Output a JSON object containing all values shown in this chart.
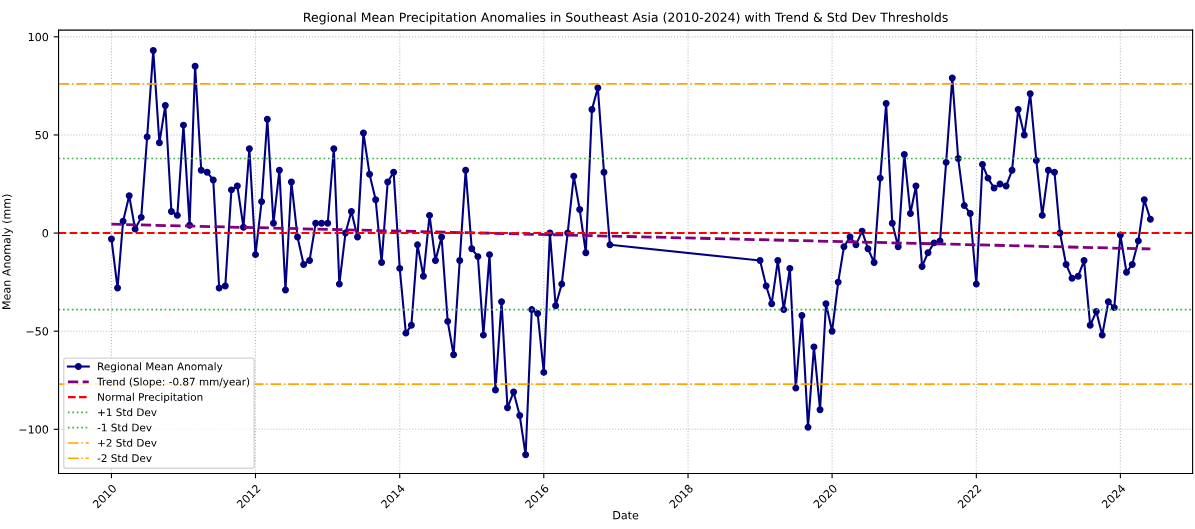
{
  "chart_data": {
    "type": "line",
    "title": "Regional Mean Precipitation Anomalies in Southeast Asia (2010-2024) with Trend & Std Dev Thresholds",
    "xlabel": "Date",
    "ylabel": "Mean Anomaly (mm)",
    "xlim": [
      "2009-04-08",
      "2025-01-01"
    ],
    "ylim": [
      -122.5,
      103.4
    ],
    "xticks": [
      {
        "value": "2010",
        "label": "2010"
      },
      {
        "value": "2012",
        "label": "2012"
      },
      {
        "value": "2014",
        "label": "2014"
      },
      {
        "value": "2016",
        "label": "2016"
      },
      {
        "value": "2018",
        "label": "2018"
      },
      {
        "value": "2020",
        "label": "2020"
      },
      {
        "value": "2022",
        "label": "2022"
      },
      {
        "value": "2024",
        "label": "2024"
      }
    ],
    "yticks": [
      {
        "value": -100,
        "label": "−100"
      },
      {
        "value": -50,
        "label": "−50"
      },
      0,
      50,
      100
    ],
    "grid": true,
    "legend": "bottom left",
    "series": [
      {
        "name": "Regional Mean Anomaly",
        "color": "#000080",
        "marker": "circle",
        "line_style": "solid",
        "x": [
          "2010-01",
          "2010-02",
          "2010-03",
          "2010-04",
          "2010-05",
          "2010-06",
          "2010-07",
          "2010-08",
          "2010-09",
          "2010-10",
          "2010-11",
          "2010-12",
          "2011-01",
          "2011-02",
          "2011-03",
          "2011-04",
          "2011-05",
          "2011-06",
          "2011-07",
          "2011-08",
          "2011-09",
          "2011-10",
          "2011-11",
          "2011-12",
          "2012-01",
          "2012-02",
          "2012-03",
          "2012-04",
          "2012-05",
          "2012-06",
          "2012-07",
          "2012-08",
          "2012-09",
          "2012-10",
          "2012-11",
          "2012-12",
          "2013-01",
          "2013-02",
          "2013-03",
          "2013-04",
          "2013-05",
          "2013-06",
          "2013-07",
          "2013-08",
          "2013-09",
          "2013-10",
          "2013-11",
          "2013-12",
          "2014-01",
          "2014-02",
          "2014-03",
          "2014-04",
          "2014-05",
          "2014-06",
          "2014-07",
          "2014-08",
          "2014-09",
          "2014-10",
          "2014-11",
          "2014-12",
          "2015-01",
          "2015-02",
          "2015-03",
          "2015-04",
          "2015-05",
          "2015-06",
          "2015-07",
          "2015-08",
          "2015-09",
          "2015-10",
          "2015-11",
          "2015-12",
          "2016-01",
          "2016-02",
          "2016-03",
          "2016-04",
          "2016-05",
          "2016-06",
          "2016-07",
          "2016-08",
          "2016-09",
          "2016-10",
          "2016-11",
          "2016-12",
          "2019-01",
          "2019-02",
          "2019-03",
          "2019-04",
          "2019-05",
          "2019-06",
          "2019-07",
          "2019-08",
          "2019-09",
          "2019-10",
          "2019-11",
          "2019-12",
          "2020-01",
          "2020-02",
          "2020-03",
          "2020-04",
          "2020-05",
          "2020-06",
          "2020-07",
          "2020-08",
          "2020-09",
          "2020-10",
          "2020-11",
          "2020-12",
          "2021-01",
          "2021-02",
          "2021-03",
          "2021-04",
          "2021-05",
          "2021-06",
          "2021-07",
          "2021-08",
          "2021-09",
          "2021-10",
          "2021-11",
          "2021-12",
          "2022-01",
          "2022-02",
          "2022-03",
          "2022-04",
          "2022-05",
          "2022-06",
          "2022-07",
          "2022-08",
          "2022-09",
          "2022-10",
          "2022-11",
          "2022-12",
          "2023-01",
          "2023-02",
          "2023-03",
          "2023-04",
          "2023-05",
          "2023-06",
          "2023-07",
          "2023-08",
          "2023-09",
          "2023-10",
          "2023-11",
          "2023-12",
          "2024-01",
          "2024-02",
          "2024-03",
          "2024-04",
          "2024-05",
          "2024-06"
        ],
        "values": [
          -3,
          -28,
          6,
          19,
          2,
          8,
          49,
          93,
          46,
          65,
          11,
          9,
          55,
          4,
          85,
          32,
          31,
          27,
          -28,
          -27,
          22,
          24,
          3,
          43,
          -11,
          16,
          58,
          5,
          32,
          -29,
          26,
          -2,
          -16,
          -14,
          5,
          5,
          5,
          43,
          -26,
          0,
          11,
          -2,
          51,
          30,
          17,
          -15,
          26,
          31,
          -18,
          -51,
          -47,
          -6,
          -22,
          9,
          -14,
          -2,
          -45,
          -62,
          -14,
          32,
          -8,
          -12,
          -52,
          -11,
          -80,
          -35,
          -89,
          -81,
          -93,
          -113,
          -39,
          -41,
          -71,
          0,
          -37,
          -26,
          0,
          29,
          12,
          -10,
          63,
          74,
          31,
          -6,
          -14,
          -27,
          -36,
          -14,
          -39,
          -18,
          -79,
          -42,
          -99,
          -58,
          -90,
          -36,
          -50,
          -25,
          -7,
          -2,
          -6,
          1,
          -8,
          -15,
          28,
          66,
          5,
          -7,
          40,
          10,
          24,
          -17,
          -10,
          -5,
          -4,
          36,
          79,
          38,
          14,
          10,
          -26,
          35,
          28,
          23,
          25,
          24,
          32,
          63,
          50,
          71,
          37,
          9,
          32,
          31,
          0,
          -16,
          -23,
          -22,
          -14,
          -47,
          -40,
          -52,
          -35,
          -38,
          -1,
          -20,
          -16,
          -4,
          17,
          7
        ]
      },
      {
        "name": "Trend (Slope: -0.87 mm/year)",
        "color": "#800080",
        "line_style": "dashed",
        "x": [
          "2010-01",
          "2024-06"
        ],
        "values": [
          4.5,
          -8.1
        ]
      }
    ],
    "ref_lines": [
      {
        "axis": "y",
        "value": 0,
        "label": "Normal Precipitation",
        "color": "#ff0000",
        "line_style": "dashed"
      },
      {
        "axis": "y",
        "value": 38,
        "label": "+1 Std Dev",
        "color": "#3cb043",
        "line_style": "dotted"
      },
      {
        "axis": "y",
        "value": -39,
        "label": "-1 Std Dev",
        "color": "#3cb043",
        "line_style": "dotted"
      },
      {
        "axis": "y",
        "value": 76,
        "label": "+2 Std Dev",
        "color": "#ffa500",
        "line_style": "dashdot"
      },
      {
        "axis": "y",
        "value": -77,
        "label": "-2 Std Dev",
        "color": "#ffa500",
        "line_style": "dashdot"
      }
    ]
  }
}
